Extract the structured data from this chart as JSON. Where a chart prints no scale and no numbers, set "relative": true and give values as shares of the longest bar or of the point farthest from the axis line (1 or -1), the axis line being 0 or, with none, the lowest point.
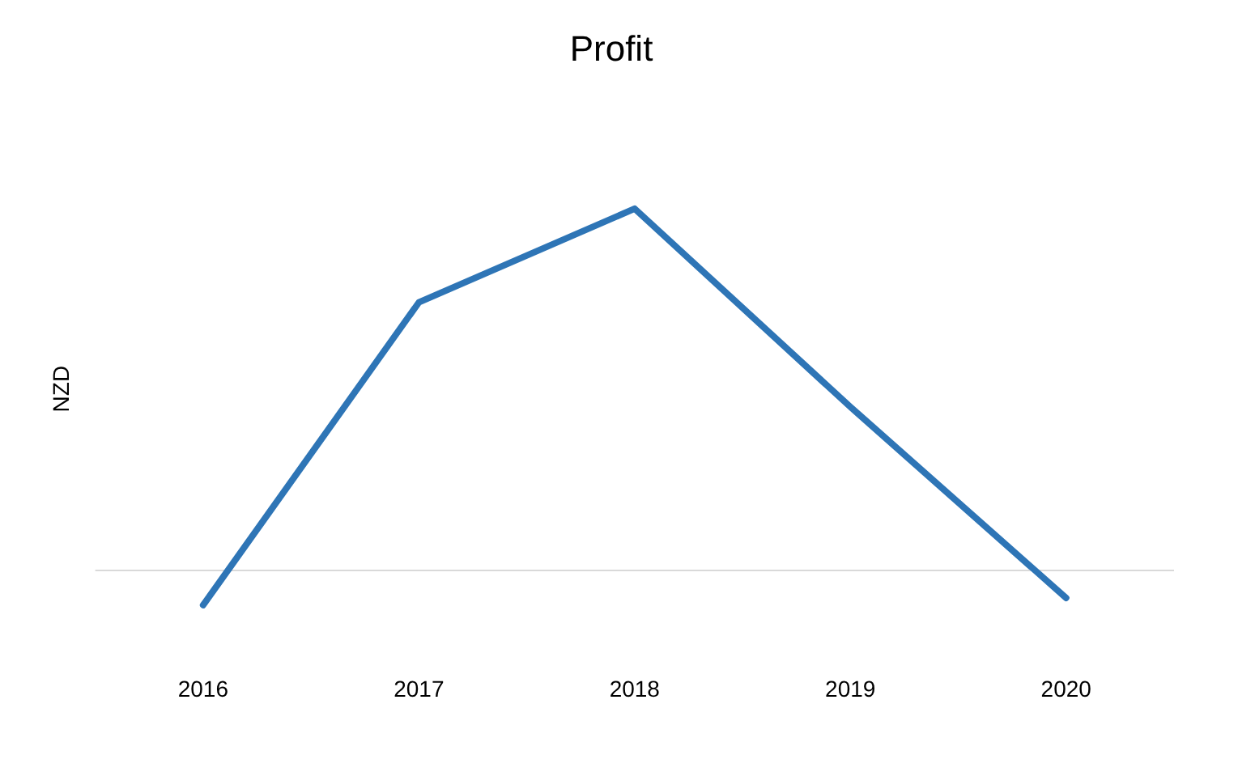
{
  "chart_data": {
    "type": "line",
    "title": "Profit",
    "ylabel": "NZD",
    "relative": true,
    "categories": [
      "2016",
      "2017",
      "2018",
      "2019",
      "2020"
    ],
    "series": [
      {
        "color": "#2e75b6",
        "values": [
          -0.1,
          0.74,
          1,
          0.45,
          -0.08
        ]
      }
    ],
    "legend": false,
    "grid": false,
    "marker": "none",
    "line_style": "solid"
  }
}
